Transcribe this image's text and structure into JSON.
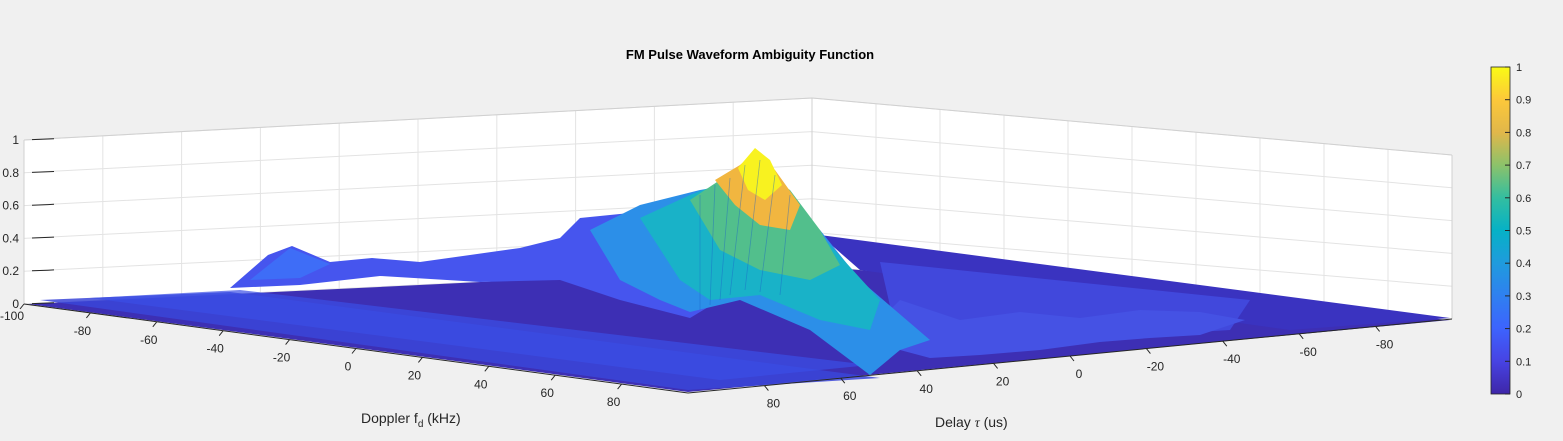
{
  "chart_data": {
    "type": "surface",
    "title": "FM Pulse Waveform Ambiguity Function",
    "xlabel_main": "Doppler f",
    "xlabel_sub": "d",
    "xlabel_unit": " (kHz)",
    "ylabel_main": "Delay ",
    "ylabel_sym": "τ",
    "ylabel_unit": " (us)",
    "zlim": [
      0,
      1
    ],
    "z_ticks": [
      "0",
      "0.2",
      "0.4",
      "0.6",
      "0.8",
      "1"
    ],
    "doppler_ticks": [
      "-100",
      "-80",
      "-60",
      "-40",
      "-20",
      "0",
      "20",
      "40",
      "60",
      "80"
    ],
    "delay_ticks": [
      "80",
      "60",
      "40",
      "20",
      "0",
      "-20",
      "-40",
      "-60",
      "-80"
    ],
    "colorbar": {
      "ticks": [
        "0",
        "0.1",
        "0.2",
        "0.3",
        "0.4",
        "0.5",
        "0.6",
        "0.7",
        "0.8",
        "0.9",
        "1"
      ],
      "colormap": "parula"
    },
    "grid": true,
    "peak": {
      "doppler_khz": 0,
      "delay_us": 0,
      "value": 1.0
    }
  }
}
